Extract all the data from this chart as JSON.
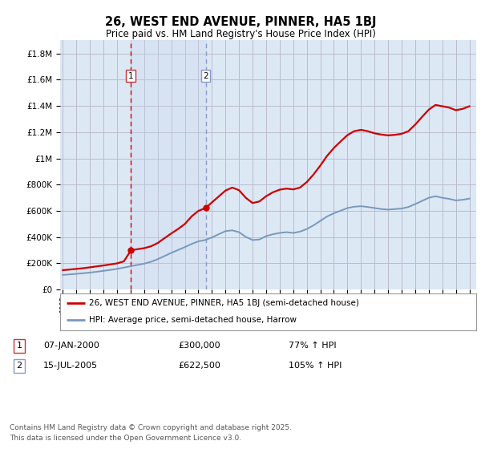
{
  "title": "26, WEST END AVENUE, PINNER, HA5 1BJ",
  "subtitle": "Price paid vs. HM Land Registry's House Price Index (HPI)",
  "ylabel_ticks": [
    "£0",
    "£200K",
    "£400K",
    "£600K",
    "£800K",
    "£1M",
    "£1.2M",
    "£1.4M",
    "£1.6M",
    "£1.8M"
  ],
  "ytick_values": [
    0,
    200000,
    400000,
    600000,
    800000,
    1000000,
    1200000,
    1400000,
    1600000,
    1800000
  ],
  "ylim": [
    0,
    1900000
  ],
  "xlim_start": 1994.8,
  "xlim_end": 2025.5,
  "background_color": "#ffffff",
  "plot_bg_color": "#dde8f5",
  "grid_color": "#bbbbcc",
  "legend_label_red": "26, WEST END AVENUE, PINNER, HA5 1BJ (semi-detached house)",
  "legend_label_blue": "HPI: Average price, semi-detached house, Harrow",
  "sale1_date": 2000.03,
  "sale1_price": 300000,
  "sale1_label": "1",
  "sale2_date": 2005.54,
  "sale2_price": 622500,
  "sale2_label": "2",
  "footer": "Contains HM Land Registry data © Crown copyright and database right 2025.\nThis data is licensed under the Open Government Licence v3.0.",
  "red_color": "#cc0000",
  "blue_color": "#7799bb",
  "vline1_color": "#cc0000",
  "vline2_color": "#8899cc",
  "hpi_red_data": {
    "years": [
      1995.0,
      1995.5,
      1996.0,
      1996.5,
      1997.0,
      1997.5,
      1998.0,
      1998.5,
      1999.0,
      1999.5,
      2000.03,
      2000.5,
      2001.0,
      2001.5,
      2002.0,
      2002.5,
      2003.0,
      2003.5,
      2004.0,
      2004.5,
      2005.0,
      2005.54,
      2006.0,
      2006.5,
      2007.0,
      2007.5,
      2008.0,
      2008.5,
      2009.0,
      2009.5,
      2010.0,
      2010.5,
      2011.0,
      2011.5,
      2012.0,
      2012.5,
      2013.0,
      2013.5,
      2014.0,
      2014.5,
      2015.0,
      2015.5,
      2016.0,
      2016.5,
      2017.0,
      2017.5,
      2018.0,
      2018.5,
      2019.0,
      2019.5,
      2020.0,
      2020.5,
      2021.0,
      2021.5,
      2022.0,
      2022.5,
      2023.0,
      2023.5,
      2024.0,
      2024.5,
      2025.0
    ],
    "values": [
      148000,
      153000,
      158000,
      163000,
      170000,
      177000,
      184000,
      192000,
      200000,
      215000,
      300000,
      308000,
      316000,
      330000,
      355000,
      392000,
      428000,
      462000,
      500000,
      558000,
      600000,
      622500,
      665000,
      710000,
      755000,
      778000,
      758000,
      700000,
      660000,
      672000,
      712000,
      742000,
      762000,
      770000,
      764000,
      778000,
      820000,
      878000,
      946000,
      1020000,
      1080000,
      1130000,
      1178000,
      1208000,
      1218000,
      1208000,
      1192000,
      1182000,
      1176000,
      1180000,
      1188000,
      1208000,
      1258000,
      1316000,
      1372000,
      1408000,
      1398000,
      1388000,
      1368000,
      1378000,
      1398000
    ]
  },
  "hpi_blue_data": {
    "years": [
      1995.0,
      1995.5,
      1996.0,
      1996.5,
      1997.0,
      1997.5,
      1998.0,
      1998.5,
      1999.0,
      1999.5,
      2000.0,
      2000.5,
      2001.0,
      2001.5,
      2002.0,
      2002.5,
      2003.0,
      2003.5,
      2004.0,
      2004.5,
      2005.0,
      2005.5,
      2006.0,
      2006.5,
      2007.0,
      2007.5,
      2008.0,
      2008.5,
      2009.0,
      2009.5,
      2010.0,
      2010.5,
      2011.0,
      2011.5,
      2012.0,
      2012.5,
      2013.0,
      2013.5,
      2014.0,
      2014.5,
      2015.0,
      2015.5,
      2016.0,
      2016.5,
      2017.0,
      2017.5,
      2018.0,
      2018.5,
      2019.0,
      2019.5,
      2020.0,
      2020.5,
      2021.0,
      2021.5,
      2022.0,
      2022.5,
      2023.0,
      2023.5,
      2024.0,
      2024.5,
      2025.0
    ],
    "values": [
      112000,
      116000,
      120000,
      125000,
      130000,
      136000,
      143000,
      150000,
      158000,
      168000,
      178000,
      188000,
      198000,
      212000,
      232000,
      256000,
      280000,
      302000,
      324000,
      348000,
      368000,
      378000,
      398000,
      422000,
      446000,
      452000,
      438000,
      402000,
      378000,
      382000,
      408000,
      422000,
      432000,
      438000,
      432000,
      442000,
      462000,
      490000,
      524000,
      558000,
      582000,
      602000,
      622000,
      632000,
      636000,
      630000,
      622000,
      614000,
      610000,
      614000,
      618000,
      630000,
      652000,
      676000,
      700000,
      712000,
      700000,
      692000,
      680000,
      685000,
      694000
    ]
  }
}
